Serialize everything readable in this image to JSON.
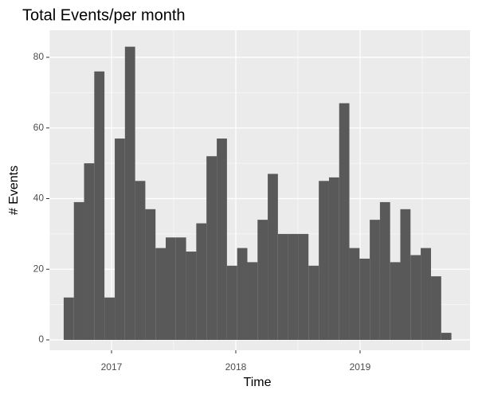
{
  "chart_data": {
    "type": "histogram",
    "title": "Total Events/per month",
    "x_label": "Time",
    "y_label": "# Events",
    "bins": [
      2016.615,
      2016.697,
      2016.779,
      2016.861,
      2016.943,
      2017.026,
      2017.108,
      2017.19,
      2017.272,
      2017.354,
      2017.436,
      2017.518,
      2017.6,
      2017.682,
      2017.764,
      2017.847,
      2017.929,
      2018.011,
      2018.093,
      2018.175,
      2018.257,
      2018.339,
      2018.421,
      2018.503,
      2018.585,
      2018.668,
      2018.75,
      2018.832,
      2018.914,
      2018.996,
      2019.078,
      2019.16,
      2019.242,
      2019.324,
      2019.406,
      2019.488,
      2019.571,
      2019.653,
      2019.735
    ],
    "values": [
      12,
      39,
      50,
      76,
      12,
      57,
      83,
      45,
      37,
      26,
      29,
      29,
      25,
      33,
      52,
      57,
      21,
      26,
      22,
      34,
      47,
      30,
      30,
      30,
      21,
      45,
      46,
      67,
      26,
      23,
      34,
      39,
      22,
      37,
      24,
      26,
      18,
      2
    ],
    "color": "#595959",
    "panel_color": "#ebebeb",
    "grid": true,
    "xlim": [
      2016.5,
      2019.885
    ],
    "xticks": [
      2017,
      2018,
      2019
    ],
    "ylim": [
      -2.93,
      87.66
    ],
    "yticks": [
      0,
      20,
      40,
      60,
      80
    ]
  }
}
